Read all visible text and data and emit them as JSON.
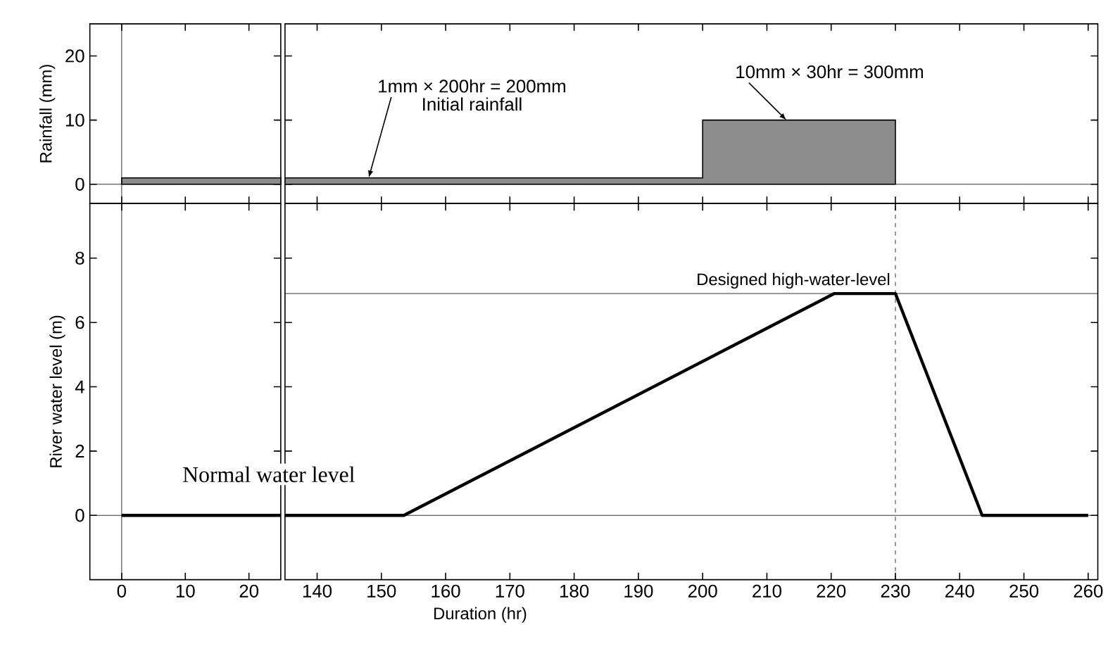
{
  "chart_data": [
    {
      "type": "area",
      "ylabel": "Rainfall (mm)",
      "x": [
        0,
        0,
        25
      ],
      "values": [
        0,
        1,
        1
      ],
      "color": "#8c8c8c",
      "xlim": [
        -5,
        25
      ],
      "xticks": [
        0,
        10,
        20
      ],
      "ylim": [
        -3,
        25
      ],
      "yticks": [
        0,
        10,
        20
      ],
      "tick_labels": "y",
      "ref_lines": [
        {
          "axis": "y",
          "value": 0
        },
        {
          "axis": "x",
          "value": 0
        }
      ]
    },
    {
      "type": "area",
      "x": [
        135,
        200,
        200,
        230,
        230
      ],
      "values": [
        1,
        1,
        10,
        10,
        0
      ],
      "color": "#8c8c8c",
      "xlim": [
        135,
        261.5
      ],
      "xticks": [
        140,
        150,
        160,
        170,
        180,
        190,
        200,
        210,
        220,
        230,
        240,
        250,
        260
      ],
      "ylim": [
        -3,
        25
      ],
      "yticks": [
        0,
        10,
        20
      ],
      "tick_labels": false,
      "ref_lines": [
        {
          "axis": "y",
          "value": 0
        }
      ],
      "annotations": [
        "1mm × 200hr = 200mm",
        "Initial rainfall",
        "10mm × 30hr = 300mm"
      ]
    },
    {
      "type": "line",
      "ylabel": "River water level (m)",
      "x": [
        0,
        25
      ],
      "values": [
        0,
        0
      ],
      "color": "#000000",
      "marker": "none",
      "line_style": "solid",
      "xlim": [
        -5,
        25
      ],
      "xticks": [
        0,
        10,
        20
      ],
      "ylim": [
        -2,
        9.7
      ],
      "yticks": [
        0,
        2,
        4,
        6,
        8
      ],
      "ref_lines": [
        {
          "axis": "y",
          "value": 0
        },
        {
          "axis": "x",
          "value": 0
        }
      ]
    },
    {
      "type": "line",
      "xlabel": "Duration (hr)",
      "x": [
        135,
        153.5,
        220.5,
        230,
        243.5,
        260
      ],
      "values": [
        0,
        0,
        6.9,
        6.9,
        0,
        0
      ],
      "color": "#000000",
      "marker": "none",
      "line_style": "solid",
      "xlim": [
        135,
        261.5
      ],
      "xticks": [
        140,
        150,
        160,
        170,
        180,
        190,
        200,
        210,
        220,
        230,
        240,
        250,
        260
      ],
      "ylim": [
        -2,
        9.7
      ],
      "yticks": [
        0,
        2,
        4,
        6,
        8
      ],
      "tick_labels": "x",
      "ref_lines": [
        {
          "axis": "y",
          "value": 0
        },
        {
          "axis": "y",
          "value": 6.9,
          "label": "Designed high-water-level"
        },
        {
          "axis": "x",
          "value": 230,
          "line_style": "dashed"
        }
      ],
      "annotations": [
        "Normal water level"
      ]
    }
  ]
}
